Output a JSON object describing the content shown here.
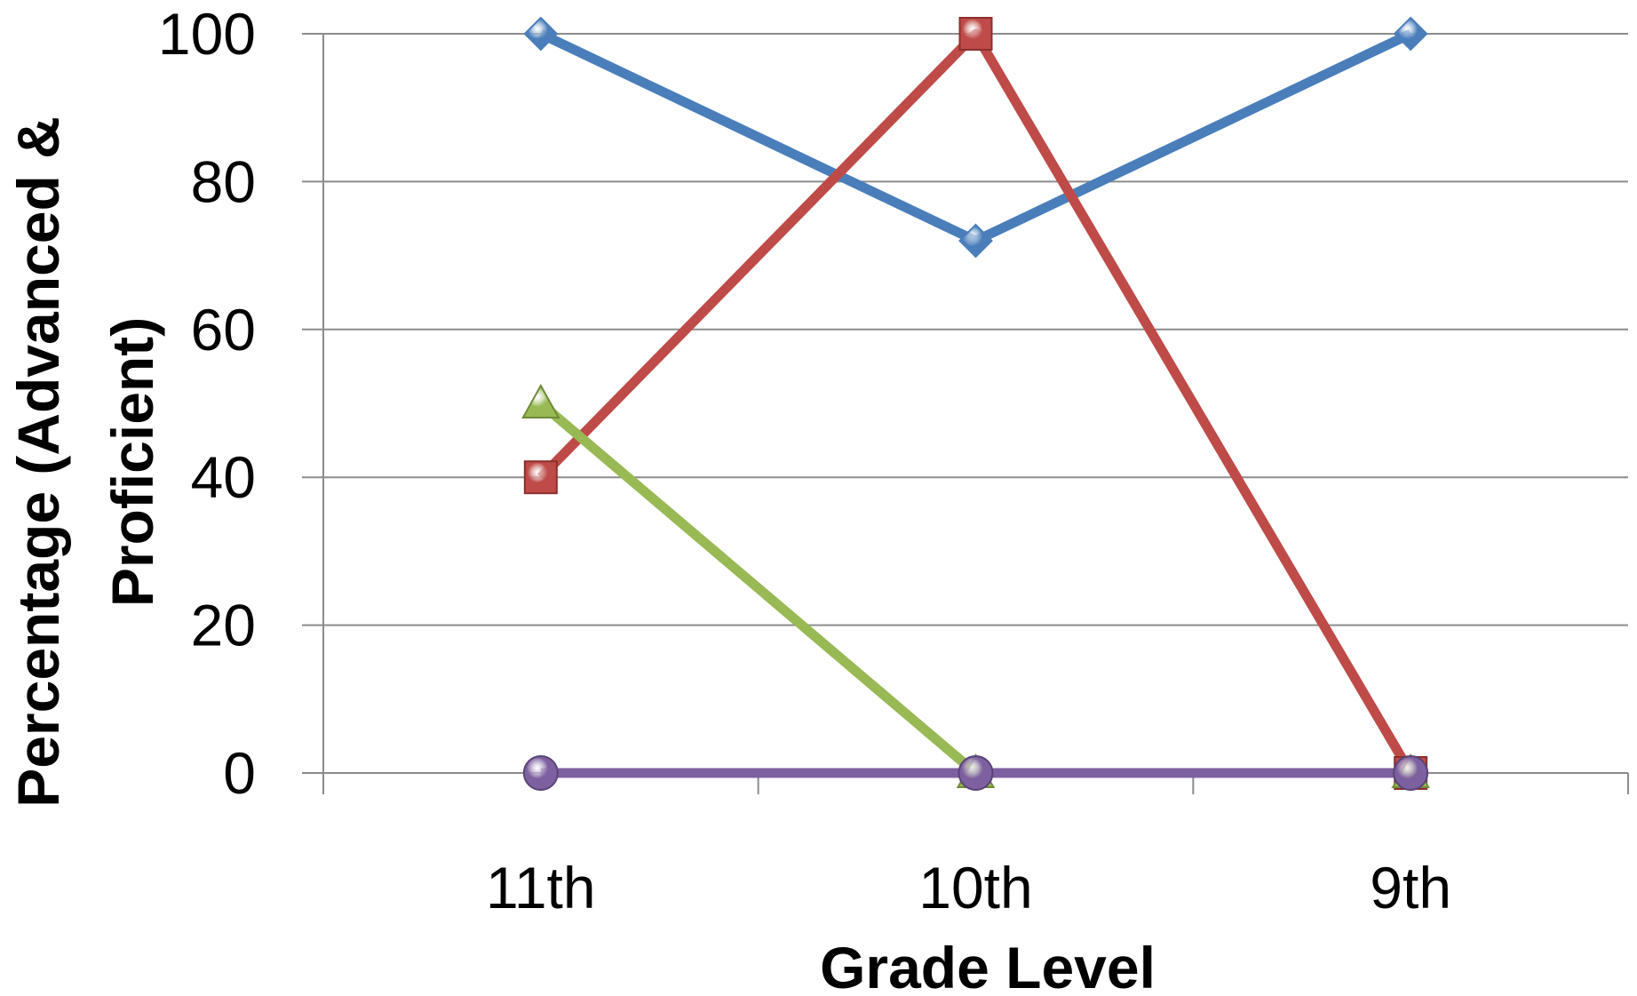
{
  "chart_data": {
    "type": "line",
    "title": "",
    "xlabel": "Grade Level",
    "ylabel_lines": [
      "Percentage (Advanced &",
      "Proficient)"
    ],
    "categories": [
      "11th",
      "10th",
      "9th"
    ],
    "ylim": [
      0,
      100
    ],
    "yticks": [
      "0",
      "20",
      "40",
      "60",
      "80",
      "100"
    ],
    "grid": true,
    "legend": "none",
    "series": [
      {
        "values": [
          100,
          72,
          100
        ],
        "color": "#4a7ebb",
        "marker": "diamond"
      },
      {
        "values": [
          40,
          100,
          0
        ],
        "color": "#be4b48",
        "marker": "square"
      },
      {
        "values": [
          50,
          0,
          0
        ],
        "color": "#98b954",
        "marker": "triangle"
      },
      {
        "values": [
          0,
          0,
          0
        ],
        "color": "#7d60a0",
        "marker": "circle"
      }
    ]
  }
}
